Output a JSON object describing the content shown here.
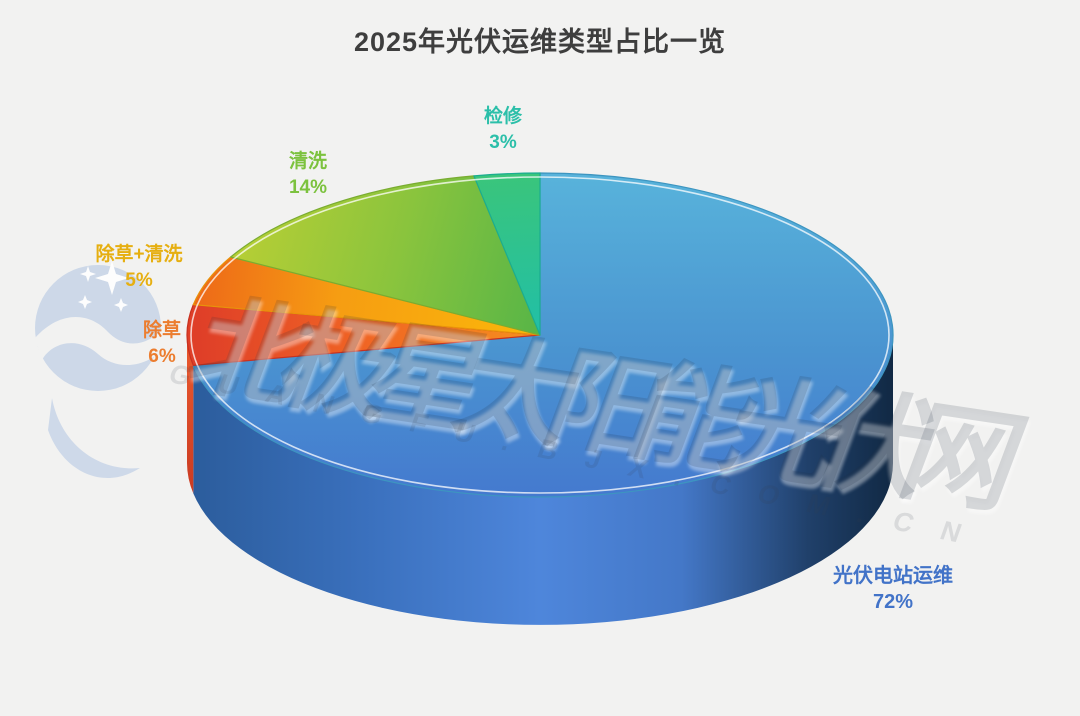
{
  "page": {
    "background_color": "#F2F2F1"
  },
  "title": {
    "text": "2025年光伏运维类型占比一览",
    "color": "#3E3E3E"
  },
  "watermark": {
    "logo_name": "north-star-logo",
    "logo_color": "#C9D6E8",
    "main_text": "北极星太阳能光伏网",
    "sub_text": "GUANGFU.BJX.COM.CN"
  },
  "chart_data": {
    "type": "pie",
    "style": "3d",
    "title": "2025年光伏运维类型占比一览",
    "start_angle_deg": 0,
    "direction": "clockwise",
    "legend_position": "none",
    "slices": [
      {
        "label": "光伏电站运维",
        "value": 72,
        "pct_text": "72%",
        "label_color": "#4273C8",
        "color": "#4A90D2"
      },
      {
        "label": "除草",
        "value": 6,
        "pct_text": "6%",
        "label_color": "#EC7D2F",
        "color": "#EE5F27"
      },
      {
        "label": "除草+清洗",
        "value": 5,
        "pct_text": "5%",
        "label_color": "#E6AF11",
        "color": "#F7A811"
      },
      {
        "label": "清洗",
        "value": 14,
        "pct_text": "14%",
        "label_color": "#7CC23E",
        "color": "#8CC43D"
      },
      {
        "label": "检修",
        "value": 3,
        "pct_text": "3%",
        "label_color": "#2BBFA9",
        "color": "#2BC295"
      }
    ]
  }
}
